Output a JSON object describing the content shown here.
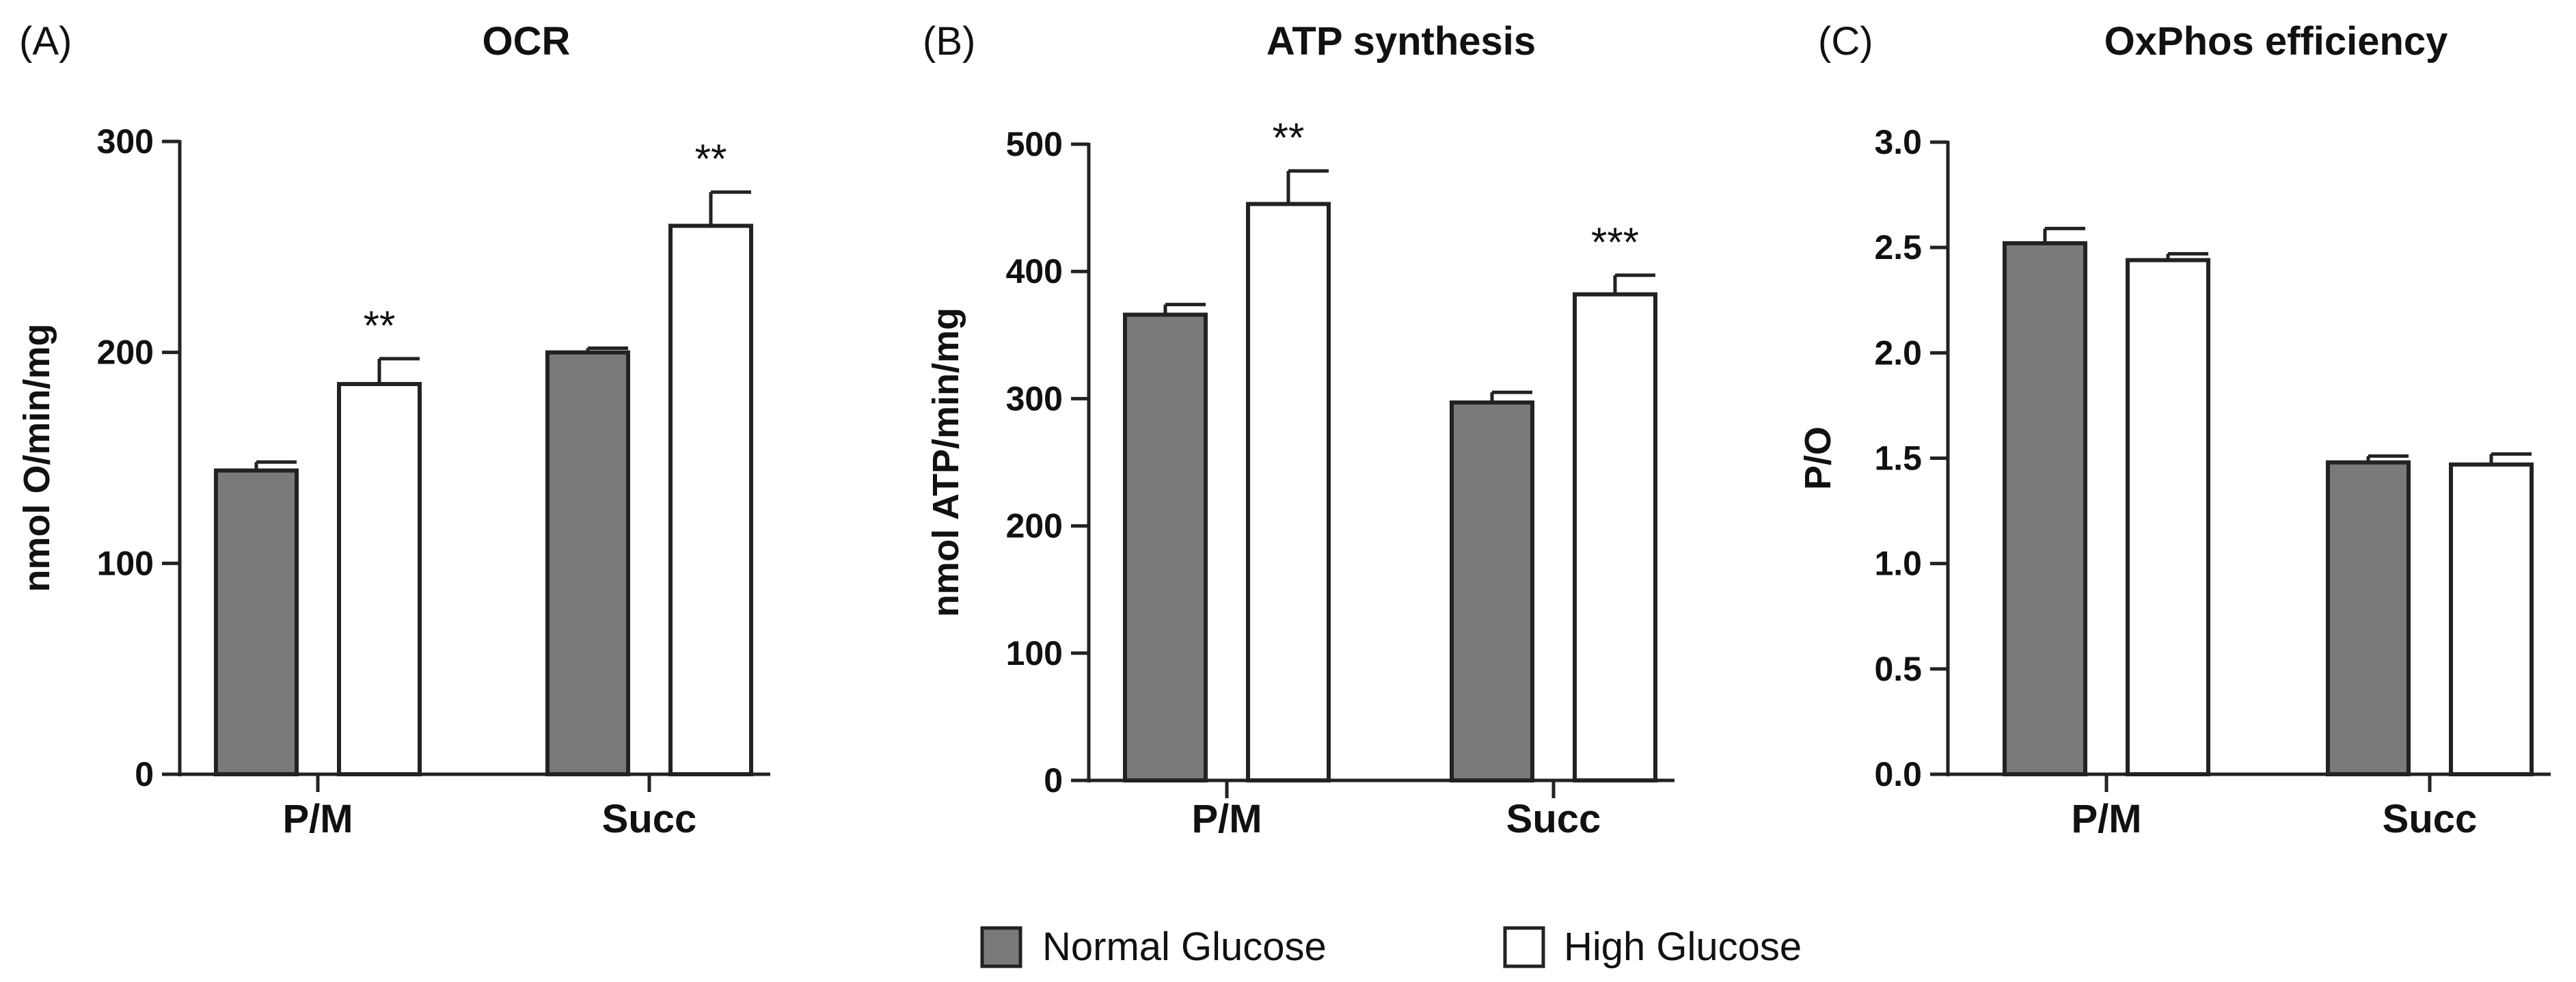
{
  "legend": {
    "items": [
      {
        "label": "Normal Glucose",
        "color": "#7a7a7a"
      },
      {
        "label": "High Glucose",
        "color": "#ffffff"
      }
    ]
  },
  "chart_data": [
    {
      "type": "bar",
      "panel_letter": "(A)",
      "title": "OCR",
      "ylabel": "nmol O/min/mg",
      "xlabel": "",
      "ylim": [
        0,
        300
      ],
      "yticks": [
        0,
        100,
        200,
        300
      ],
      "ytick_labels": [
        "0",
        "100",
        "200",
        "300"
      ],
      "categories": [
        "P/M",
        "Succ"
      ],
      "series": [
        {
          "name": "Normal Glucose",
          "color": "#7a7a7a",
          "values": [
            144,
            200
          ],
          "errors": [
            4,
            2
          ],
          "significance": [
            "",
            ""
          ]
        },
        {
          "name": "High Glucose",
          "color": "#ffffff",
          "values": [
            185,
            260
          ],
          "errors": [
            12,
            16
          ],
          "significance": [
            "**",
            "**"
          ]
        }
      ]
    },
    {
      "type": "bar",
      "panel_letter": "(B)",
      "title": "ATP synthesis",
      "ylabel": "nmol ATP/min/mg",
      "xlabel": "",
      "ylim": [
        0,
        500
      ],
      "yticks": [
        0,
        100,
        200,
        300,
        400,
        500
      ],
      "ytick_labels": [
        "0",
        "100",
        "200",
        "300",
        "400",
        "500"
      ],
      "categories": [
        "P/M",
        "Succ"
      ],
      "series": [
        {
          "name": "Normal Glucose",
          "color": "#7a7a7a",
          "values": [
            366,
            297
          ],
          "errors": [
            8,
            8
          ],
          "significance": [
            "",
            ""
          ]
        },
        {
          "name": "High Glucose",
          "color": "#ffffff",
          "values": [
            453,
            382
          ],
          "errors": [
            26,
            15
          ],
          "significance": [
            "**",
            "***"
          ]
        }
      ]
    },
    {
      "type": "bar",
      "panel_letter": "(C)",
      "title": "OxPhos efficiency",
      "ylabel": "P/O",
      "xlabel": "",
      "ylim": [
        0,
        3.0
      ],
      "yticks": [
        0,
        0.5,
        1.0,
        1.5,
        2.0,
        2.5,
        3.0
      ],
      "ytick_labels": [
        "0.0",
        "0.5",
        "1.0",
        "1.5",
        "2.0",
        "2.5",
        "3.0"
      ],
      "categories": [
        "P/M",
        "Succ"
      ],
      "series": [
        {
          "name": "Normal Glucose",
          "color": "#7a7a7a",
          "values": [
            2.52,
            1.48
          ],
          "errors": [
            0.07,
            0.03
          ],
          "significance": [
            "",
            ""
          ]
        },
        {
          "name": "High Glucose",
          "color": "#ffffff",
          "values": [
            2.44,
            1.47
          ],
          "errors": [
            0.03,
            0.05
          ],
          "significance": [
            "",
            ""
          ]
        }
      ]
    }
  ]
}
